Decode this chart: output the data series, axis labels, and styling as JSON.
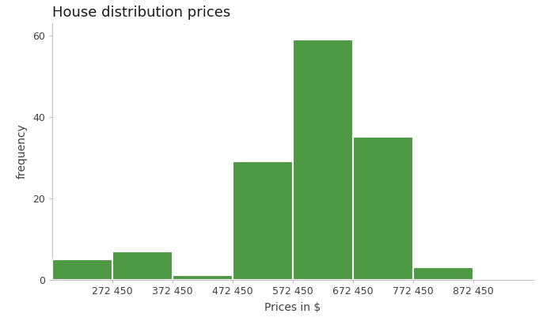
{
  "title": "House distribution prices",
  "xlabel": "Prices in $",
  "ylabel": "frequency",
  "bar_color": "#4d9944",
  "bar_edgecolor": "white",
  "bar_linewidth": 1.5,
  "bin_edges": [
    172450,
    272450,
    372450,
    472450,
    572450,
    672450,
    772450,
    872450,
    972450
  ],
  "frequencies": [
    5,
    7,
    1,
    29,
    59,
    35,
    3,
    0
  ],
  "xlim": [
    172450,
    972450
  ],
  "ylim": [
    0,
    63
  ],
  "yticks": [
    0,
    20,
    40,
    60
  ],
  "xticks": [
    272450,
    372450,
    472450,
    572450,
    672450,
    772450,
    872450
  ],
  "xtick_labels": [
    "272 450",
    "372 450",
    "472 450",
    "572 450",
    "672 450",
    "772 450",
    "872 450"
  ],
  "title_fontsize": 13,
  "label_fontsize": 10,
  "tick_fontsize": 9,
  "background_color": "#ffffff",
  "panel_background": "#ffffff",
  "spine_color": "#c0c0c0"
}
